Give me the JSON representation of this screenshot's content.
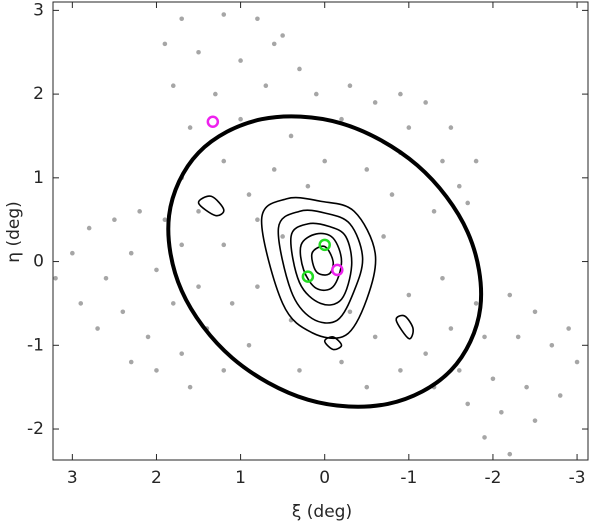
{
  "chart_data": {
    "type": "scatter",
    "xlabel": "ξ (deg)",
    "ylabel": "η (deg)",
    "xlim": [
      3.23,
      -3.13
    ],
    "ylim": [
      -2.37,
      3.1
    ],
    "xticks": [
      3,
      2,
      1,
      0,
      -1,
      -2,
      -3
    ],
    "yticks": [
      -2,
      -1,
      0,
      1,
      2,
      3
    ],
    "series": [
      {
        "type": "scatter",
        "color": "#a6a6a6",
        "x": [
          1.7,
          1.2,
          0.8,
          0.5,
          1.5,
          1.0,
          0.3,
          1.8,
          1.3,
          0.7,
          0.1,
          -0.3,
          1.6,
          1.0,
          0.4,
          -0.2,
          -0.6,
          -0.9,
          -1.2,
          -1.5,
          -1.8,
          -1.4,
          -0.9,
          -0.5,
          0.0,
          0.6,
          1.2,
          1.7,
          -1.7,
          -1.3,
          -0.8,
          0.2,
          0.9,
          1.5,
          0.6,
          1.9,
          -1.0,
          -1.6,
          3.2,
          3.0,
          2.8,
          2.5,
          2.2,
          1.9,
          2.9,
          2.6,
          2.3,
          2.0,
          1.7,
          2.7,
          2.4,
          2.1,
          1.8,
          1.5,
          2.3,
          2.0,
          1.7,
          1.4,
          1.1,
          1.6,
          1.2,
          0.9,
          1.2,
          0.8,
          -1.0,
          -1.4,
          -1.8,
          -2.2,
          -2.5,
          -2.9,
          -3.0,
          -2.7,
          -2.3,
          -1.9,
          -1.5,
          -1.2,
          -1.6,
          -2.0,
          -2.4,
          -2.8,
          -2.5,
          -2.1,
          -1.7,
          -1.3,
          -1.9,
          -2.2,
          -0.9,
          -0.5,
          -0.2,
          0.3,
          -0.6,
          -0.3,
          0.4,
          -0.7,
          0.5,
          0.8
        ],
        "y": [
          2.9,
          2.95,
          2.9,
          2.7,
          2.5,
          2.4,
          2.3,
          2.1,
          2.0,
          2.1,
          2.0,
          2.1,
          1.6,
          1.7,
          1.5,
          1.7,
          1.9,
          2.0,
          1.9,
          1.6,
          1.2,
          1.2,
          1.3,
          1.1,
          1.2,
          1.1,
          1.2,
          1.0,
          0.7,
          0.6,
          0.8,
          0.9,
          0.8,
          0.6,
          2.6,
          2.6,
          1.6,
          0.9,
          -0.2,
          0.1,
          0.4,
          0.5,
          0.6,
          0.5,
          -0.5,
          -0.2,
          0.1,
          -0.1,
          0.2,
          -0.8,
          -0.6,
          -0.9,
          -0.5,
          -0.3,
          -1.2,
          -1.3,
          -1.1,
          -0.8,
          -0.5,
          -1.5,
          -1.3,
          -1.0,
          0.2,
          -0.3,
          -0.4,
          -0.2,
          -0.5,
          -0.4,
          -0.6,
          -0.8,
          -1.2,
          -1.0,
          -0.9,
          -0.9,
          -0.8,
          -1.1,
          -1.3,
          -1.4,
          -1.5,
          -1.6,
          -1.9,
          -1.8,
          -1.7,
          -1.5,
          -2.1,
          -2.3,
          -1.3,
          -1.5,
          -1.2,
          -1.3,
          -0.9,
          -0.6,
          -0.7,
          0.3,
          0.3,
          0.5
        ]
      },
      {
        "type": "line",
        "color": "#000000",
        "width": 4,
        "x": [
          1.85,
          1.5,
          0.75,
          -0.2,
          -1.1,
          -1.7,
          -1.85,
          -1.5,
          -0.75,
          0.2,
          1.1,
          1.7,
          1.85
        ],
        "y": [
          0.55,
          1.3,
          1.7,
          1.65,
          1.15,
          0.35,
          -0.55,
          -1.3,
          -1.7,
          -1.65,
          -1.15,
          -0.35,
          0.55
        ]
      },
      {
        "type": "line",
        "color": "#000000",
        "width": 1.6,
        "x": [
          0.75,
          0.45,
          0.05,
          -0.35,
          -0.6,
          -0.5,
          -0.25,
          0.15,
          0.5,
          0.75
        ],
        "y": [
          0.5,
          0.75,
          0.72,
          0.6,
          0.1,
          -0.45,
          -0.88,
          -0.85,
          -0.5,
          0.5
        ]
      },
      {
        "type": "line",
        "color": "#000000",
        "width": 1.6,
        "x": [
          0.55,
          0.3,
          0.0,
          -0.3,
          -0.45,
          -0.35,
          -0.15,
          0.15,
          0.4,
          0.55
        ],
        "y": [
          0.4,
          0.6,
          0.58,
          0.45,
          0.05,
          -0.35,
          -0.7,
          -0.68,
          -0.35,
          0.4
        ]
      },
      {
        "type": "line",
        "color": "#000000",
        "width": 1.6,
        "x": [
          0.4,
          0.2,
          -0.05,
          -0.25,
          -0.32,
          -0.2,
          0.05,
          0.3,
          0.4
        ],
        "y": [
          0.3,
          0.45,
          0.42,
          0.3,
          -0.05,
          -0.45,
          -0.5,
          -0.25,
          0.3
        ]
      },
      {
        "type": "line",
        "color": "#000000",
        "width": 1.6,
        "x": [
          0.28,
          0.1,
          -0.1,
          -0.2,
          -0.1,
          0.1,
          0.25,
          0.28
        ],
        "y": [
          0.2,
          0.33,
          0.28,
          0.0,
          -0.3,
          -0.32,
          -0.1,
          0.2
        ]
      },
      {
        "type": "line",
        "color": "#000000",
        "width": 1.6,
        "x": [
          0.15,
          0.0,
          -0.1,
          -0.05,
          0.1,
          0.15
        ],
        "y": [
          0.1,
          0.18,
          0.0,
          -0.15,
          -0.12,
          0.1
        ]
      },
      {
        "type": "line",
        "color": "#000000",
        "width": 1.6,
        "x": [
          1.5,
          1.35,
          1.2,
          1.3,
          1.5
        ],
        "y": [
          0.7,
          0.78,
          0.62,
          0.55,
          0.7
        ]
      },
      {
        "type": "line",
        "color": "#000000",
        "width": 1.6,
        "x": [
          -0.85,
          -0.95,
          -1.05,
          -1.0,
          -0.85
        ],
        "y": [
          -0.7,
          -0.65,
          -0.8,
          -0.92,
          -0.7
        ]
      },
      {
        "type": "line",
        "color": "#000000",
        "width": 1.6,
        "x": [
          0.0,
          -0.1,
          -0.2,
          -0.1,
          0.0
        ],
        "y": [
          -0.95,
          -0.9,
          -1.0,
          -1.05,
          -0.95
        ]
      },
      {
        "type": "ring",
        "color": "#22dd22",
        "x": [
          0.0,
          0.2
        ],
        "y": [
          0.2,
          -0.18
        ]
      },
      {
        "type": "ring",
        "color": "#ee22ee",
        "x": [
          1.33,
          -0.15
        ],
        "y": [
          1.67,
          -0.1
        ]
      }
    ]
  }
}
